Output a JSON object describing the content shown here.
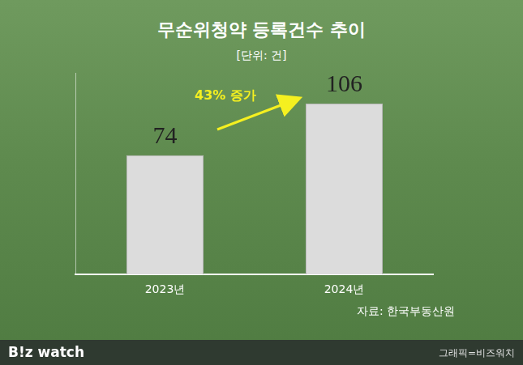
{
  "chart_data": {
    "type": "bar",
    "title": "무순위청약 등록건수 추이",
    "subtitle": "[단위: 건]",
    "categories": [
      "2023년",
      "2024년"
    ],
    "values": [
      74,
      106
    ],
    "color": "#dcdcdc",
    "ylim": [
      0,
      125
    ],
    "data_labels": true,
    "tick_labels": "x",
    "grid": false,
    "annotations": [
      "43% 증가"
    ],
    "source": "자료: 한국부동산원",
    "brand": "B!z watch",
    "credit": "그래픽=비즈워치"
  }
}
